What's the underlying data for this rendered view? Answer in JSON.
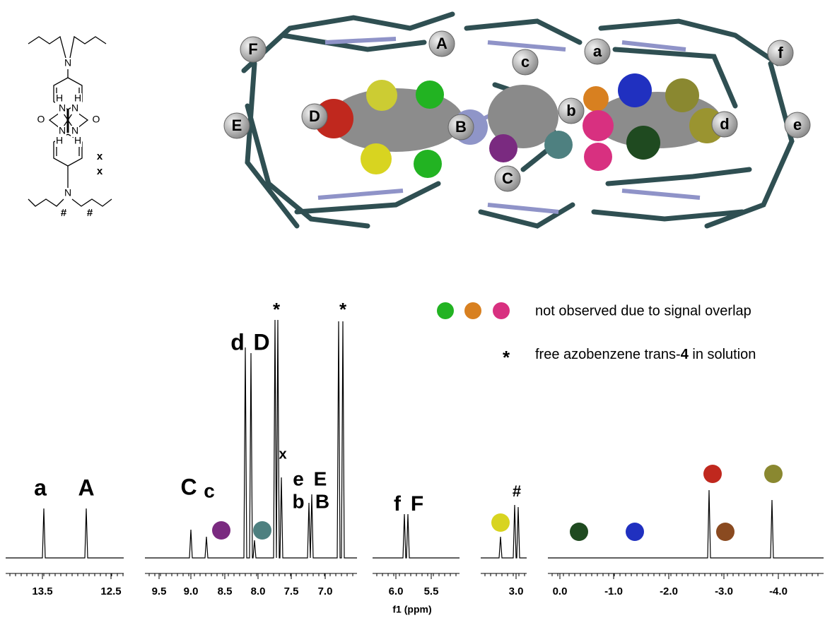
{
  "structure": {
    "atoms": [
      "N",
      "H",
      "H",
      "N",
      "N",
      "O",
      "O",
      "N",
      "N",
      "H",
      "H",
      "N"
    ],
    "markers": [
      "x",
      "x",
      "#",
      "#"
    ]
  },
  "model_labels": [
    "A",
    "F",
    "E",
    "D",
    "B",
    "c",
    "C",
    "a",
    "b",
    "f",
    "d",
    "e"
  ],
  "legend": {
    "overlap": "not observed due to signal overlap",
    "star": "*",
    "free_prefix": "free azobenzene trans-",
    "free_bold": "4",
    "free_suffix": " in solution"
  },
  "spectrum": {
    "peak_labels": [
      "a",
      "A",
      "C",
      "c",
      "d",
      "D",
      "*",
      "*",
      "x",
      "e",
      "b",
      "E",
      "B",
      "f",
      "F",
      "#"
    ],
    "axis_label": "f1 (ppm)",
    "ticks": [
      "13.5",
      "12.5",
      "9.5",
      "9.0",
      "8.5",
      "8.0",
      "7.5",
      "7.0",
      "6.0",
      "5.5",
      "3.0",
      "0.0",
      "-1.0",
      "-2.0",
      "-3.0",
      "-4.0"
    ]
  }
}
